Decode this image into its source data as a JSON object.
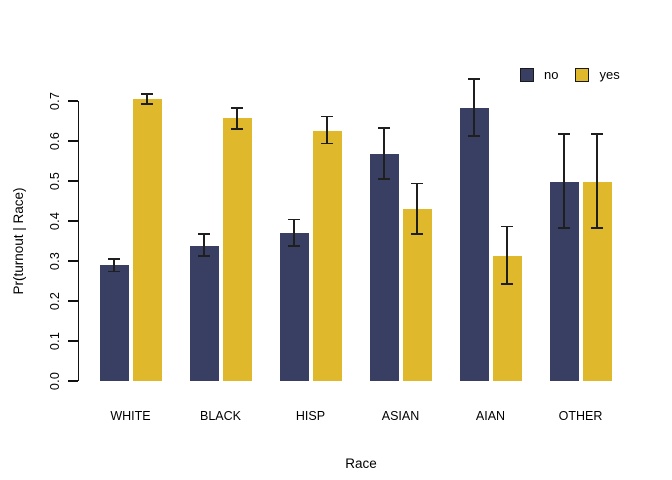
{
  "chart_data": {
    "type": "bar",
    "title": "",
    "xlabel": "Race",
    "ylabel": "Pr(turnout | Race)",
    "categories": [
      "WHITE",
      "BLACK",
      "HISP",
      "ASIAN",
      "AIAN",
      "OTHER"
    ],
    "series": [
      {
        "name": "no",
        "color": "#383F63",
        "values": [
          0.29,
          0.338,
          0.371,
          0.567,
          0.682,
          0.497
        ],
        "ci_low": [
          0.274,
          0.313,
          0.338,
          0.505,
          0.613,
          0.382
        ],
        "ci_high": [
          0.305,
          0.368,
          0.404,
          0.632,
          0.755,
          0.618
        ]
      },
      {
        "name": "yes",
        "color": "#DFB92B",
        "values": [
          0.705,
          0.657,
          0.626,
          0.429,
          0.313,
          0.497
        ],
        "ci_low": [
          0.693,
          0.63,
          0.594,
          0.368,
          0.243,
          0.382
        ],
        "ci_high": [
          0.718,
          0.683,
          0.661,
          0.494,
          0.386,
          0.618
        ]
      }
    ],
    "ylim": [
      0,
      0.7
    ],
    "yticks": [
      "0.0",
      "0.1",
      "0.2",
      "0.3",
      "0.4",
      "0.5",
      "0.6",
      "0.7"
    ],
    "grid": false,
    "legend_position": "top-right",
    "error_bars": true,
    "error_bar_color": "#1f1f1f",
    "axis_color": "#111111"
  }
}
